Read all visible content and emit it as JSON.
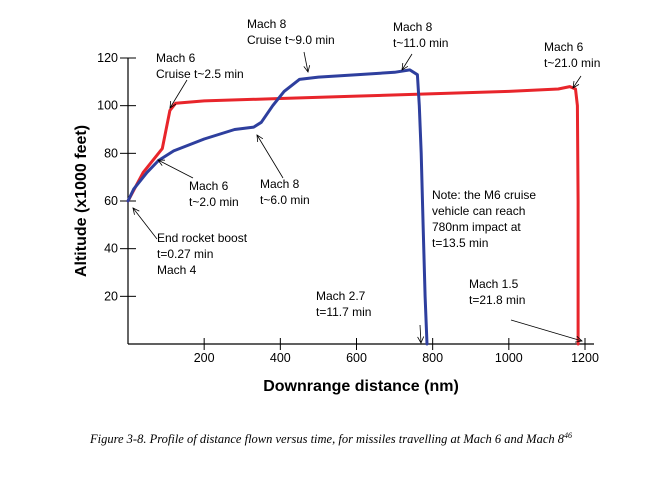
{
  "chart_data": {
    "type": "line",
    "xlabel": "Downrange distance (nm)",
    "ylabel": "Altitude (x1000 feet)",
    "xlim": [
      0,
      1200
    ],
    "ylim": [
      0,
      120
    ],
    "xticks": [
      200,
      400,
      600,
      800,
      1000,
      1200
    ],
    "yticks": [
      20,
      40,
      60,
      80,
      100,
      120
    ],
    "series": [
      {
        "color": "#e8252b",
        "points": [
          [
            0,
            60
          ],
          [
            20,
            66
          ],
          [
            40,
            72
          ],
          [
            70,
            78
          ],
          [
            90,
            82
          ],
          [
            100,
            90
          ],
          [
            110,
            98
          ],
          [
            125,
            101
          ],
          [
            200,
            102
          ],
          [
            400,
            103
          ],
          [
            600,
            104
          ],
          [
            800,
            105
          ],
          [
            1000,
            106
          ],
          [
            1130,
            107
          ],
          [
            1160,
            108
          ],
          [
            1175,
            107
          ],
          [
            1180,
            100
          ],
          [
            1182,
            60
          ],
          [
            1182,
            0
          ]
        ]
      },
      {
        "color": "#2e3f9e",
        "points": [
          [
            0,
            60
          ],
          [
            15,
            65
          ],
          [
            50,
            72
          ],
          [
            80,
            77
          ],
          [
            120,
            81
          ],
          [
            200,
            86
          ],
          [
            280,
            90
          ],
          [
            330,
            91
          ],
          [
            350,
            93
          ],
          [
            380,
            100
          ],
          [
            410,
            106
          ],
          [
            450,
            111
          ],
          [
            500,
            112
          ],
          [
            600,
            113
          ],
          [
            700,
            114
          ],
          [
            740,
            115
          ],
          [
            760,
            113
          ],
          [
            765,
            100
          ],
          [
            770,
            80
          ],
          [
            775,
            50
          ],
          [
            780,
            20
          ],
          [
            785,
            0
          ]
        ]
      }
    ],
    "annotations": {
      "end_boost": [
        "End rocket boost",
        "t=0.27 min",
        "Mach 4"
      ],
      "m6_cruise": [
        "Mach 6",
        "Cruise t~2.5 min"
      ],
      "m6_2min": [
        "Mach 6",
        "t~2.0 min"
      ],
      "m8_6min": [
        "Mach 8",
        "t~6.0 min"
      ],
      "m8_cruise": [
        "Mach 8",
        "Cruise t~9.0 min"
      ],
      "m8_11min": [
        "Mach 8",
        "t~11.0 min"
      ],
      "m6_21min": [
        "Mach 6",
        "t~21.0 min"
      ],
      "note": [
        "Note: the M6 cruise",
        "vehicle can reach",
        "780nm impact at",
        "t=13.5 min"
      ],
      "m27": [
        "Mach 2.7",
        "t=11.7 min"
      ],
      "m15": [
        "Mach 1.5",
        "t=21.8 min"
      ]
    }
  },
  "caption": {
    "text": "Figure 3-8. Profile of distance flown versus time, for missiles travelling at Mach 6 and Mach 8",
    "sup": "46"
  }
}
